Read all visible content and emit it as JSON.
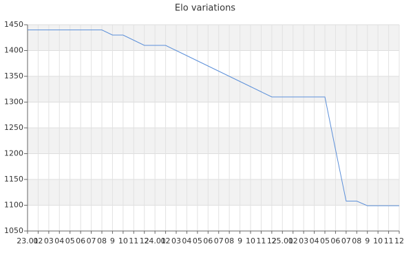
{
  "chart_data": {
    "type": "line",
    "title": "Elo variations",
    "categories": [
      "23.01",
      "02",
      "03",
      "04",
      "05",
      "06",
      "07",
      "08",
      "9",
      "10",
      "11",
      "12",
      "24.01",
      "02",
      "03",
      "04",
      "05",
      "06",
      "07",
      "08",
      "9",
      "10",
      "11",
      "12",
      "25.01",
      "02",
      "03",
      "04",
      "05",
      "06",
      "07",
      "08",
      "9",
      "10",
      "11",
      "12"
    ],
    "series": [
      {
        "name": "Elo",
        "color": "#5b8fd9",
        "values": [
          1440,
          1440,
          1440,
          1440,
          1440,
          1440,
          1440,
          1440,
          1430,
          1430,
          1420,
          1410,
          1410,
          1410,
          1400,
          1390,
          1380,
          1370,
          1360,
          1350,
          1340,
          1330,
          1320,
          1310,
          1310,
          1310,
          1310,
          1310,
          1310,
          1208,
          1108,
          1108,
          1099,
          1099,
          1099,
          1099
        ]
      }
    ],
    "ylim": [
      1050,
      1450
    ],
    "yticks": [
      1050,
      1100,
      1150,
      1200,
      1250,
      1300,
      1350,
      1400,
      1450
    ],
    "grid": true
  }
}
